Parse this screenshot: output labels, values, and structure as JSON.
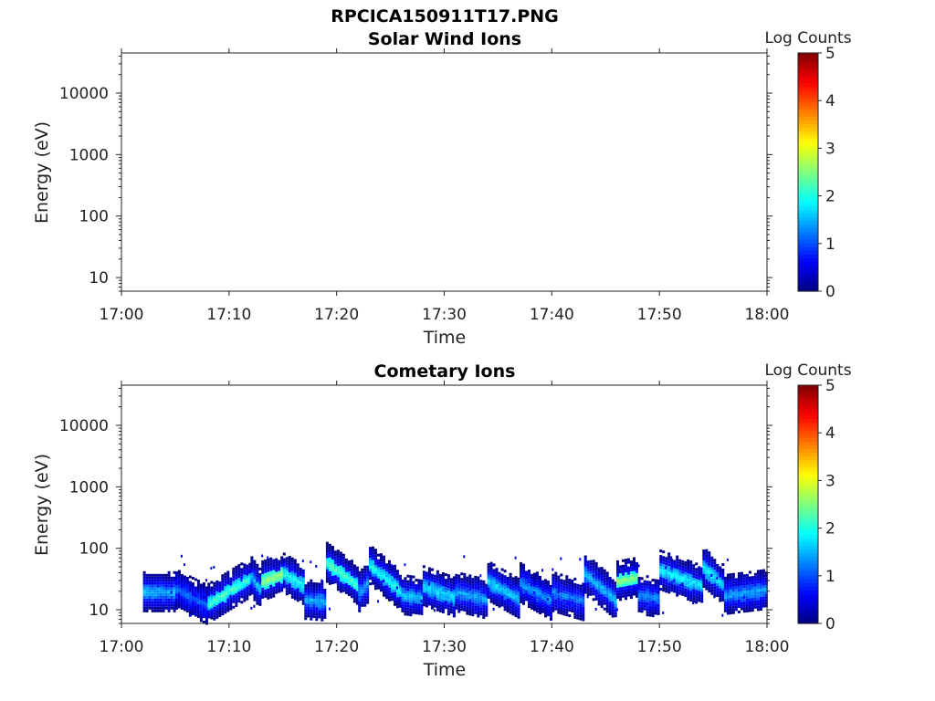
{
  "figure": {
    "title": "RPCICA150911T17.PNG"
  },
  "chart_data": [
    {
      "type": "heatmap",
      "title": "Solar Wind Ions",
      "xlabel": "Time",
      "ylabel": "Energy (eV)",
      "x_range": [
        "17:00",
        "18:00"
      ],
      "x_ticks": [
        "17:00",
        "17:10",
        "17:20",
        "17:30",
        "17:40",
        "17:50",
        "18:00"
      ],
      "y_scale": "log",
      "y_range": [
        6,
        45000
      ],
      "y_ticks": [
        10,
        100,
        1000,
        10000
      ],
      "y_tick_labels": [
        "10",
        "100",
        "1000",
        "10000"
      ],
      "colorbar": {
        "label": "Log Counts",
        "range": [
          0,
          5
        ],
        "ticks": [
          "0",
          "1",
          "2",
          "3",
          "4",
          "5"
        ],
        "colormap": "jet"
      },
      "bands": []
    },
    {
      "type": "heatmap",
      "title": "Cometary Ions",
      "xlabel": "Time",
      "ylabel": "Energy (eV)",
      "x_range": [
        "17:00",
        "18:00"
      ],
      "x_ticks": [
        "17:00",
        "17:10",
        "17:20",
        "17:30",
        "17:40",
        "17:50",
        "18:00"
      ],
      "y_scale": "log",
      "y_range": [
        6,
        45000
      ],
      "y_ticks": [
        10,
        100,
        1000,
        10000
      ],
      "y_tick_labels": [
        "10",
        "100",
        "1000",
        "10000"
      ],
      "colorbar": {
        "label": "Log Counts",
        "range": [
          0,
          5
        ],
        "ticks": [
          "0",
          "1",
          "2",
          "3",
          "4",
          "5"
        ],
        "colormap": "jet"
      },
      "data_start": "17:02",
      "data_end": "18:00",
      "sporadic_upper_energy_eV": 80,
      "bands": [
        {
          "t": [
            "17:02",
            "17:05"
          ],
          "e": [
            20,
            20
          ],
          "level": 1.6
        },
        {
          "t": [
            "17:05",
            "17:08"
          ],
          "e": [
            22,
            12
          ],
          "level": 1.2
        },
        {
          "t": [
            "17:08",
            "17:12"
          ],
          "e": [
            13,
            35
          ],
          "level": 2.2
        },
        {
          "t": [
            "17:12",
            "17:13"
          ],
          "e": [
            35,
            20
          ],
          "level": 1.6
        },
        {
          "t": [
            "17:13",
            "17:15"
          ],
          "e": [
            30,
            40
          ],
          "level": 2.6
        },
        {
          "t": [
            "17:15",
            "17:17"
          ],
          "e": [
            40,
            25
          ],
          "level": 2.0
        },
        {
          "t": [
            "17:17",
            "17:19"
          ],
          "e": [
            15,
            14
          ],
          "level": 1.6
        },
        {
          "t": [
            "17:19",
            "17:22"
          ],
          "e": [
            60,
            25
          ],
          "level": 2.3
        },
        {
          "t": [
            "17:22",
            "17:23"
          ],
          "e": [
            20,
            30
          ],
          "level": 1.5
        },
        {
          "t": [
            "17:23",
            "17:26"
          ],
          "e": [
            55,
            20
          ],
          "level": 2.0
        },
        {
          "t": [
            "17:26",
            "17:28"
          ],
          "e": [
            18,
            16
          ],
          "level": 1.7
        },
        {
          "t": [
            "17:28",
            "17:31"
          ],
          "e": [
            25,
            16
          ],
          "level": 1.8
        },
        {
          "t": [
            "17:31",
            "17:34"
          ],
          "e": [
            20,
            15
          ],
          "level": 1.5
        },
        {
          "t": [
            "17:34",
            "17:37"
          ],
          "e": [
            30,
            15
          ],
          "level": 1.7
        },
        {
          "t": [
            "17:37",
            "17:40"
          ],
          "e": [
            28,
            14
          ],
          "level": 1.5
        },
        {
          "t": [
            "17:40",
            "17:43"
          ],
          "e": [
            20,
            14
          ],
          "level": 1.3
        },
        {
          "t": [
            "17:43",
            "17:46"
          ],
          "e": [
            40,
            14
          ],
          "level": 1.6
        },
        {
          "t": [
            "17:46",
            "17:48"
          ],
          "e": [
            30,
            35
          ],
          "level": 2.6
        },
        {
          "t": [
            "17:48",
            "17:50"
          ],
          "e": [
            18,
            16
          ],
          "level": 1.4
        },
        {
          "t": [
            "17:50",
            "17:54"
          ],
          "e": [
            45,
            25
          ],
          "level": 1.9
        },
        {
          "t": [
            "17:54",
            "17:56"
          ],
          "e": [
            50,
            25
          ],
          "level": 1.9
        },
        {
          "t": [
            "17:56",
            "18:00"
          ],
          "e": [
            18,
            22
          ],
          "level": 1.5
        }
      ]
    }
  ]
}
